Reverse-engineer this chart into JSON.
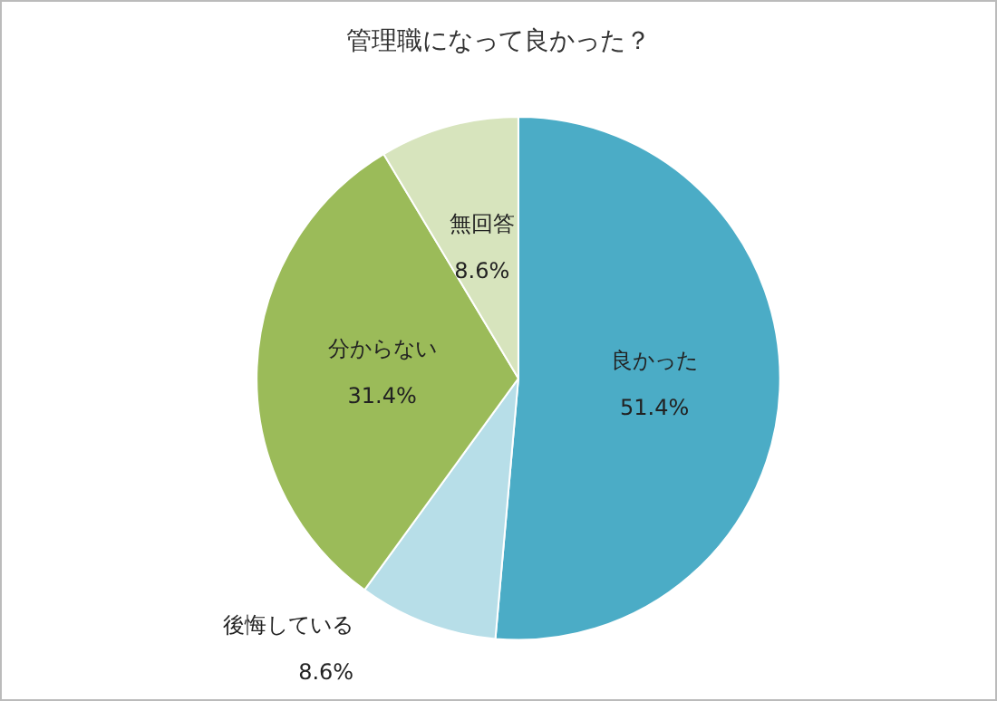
{
  "chart_data": {
    "type": "pie",
    "title": "管理職になって良かった？",
    "categories": [
      "良かった",
      "後悔している",
      "分からない",
      "無回答"
    ],
    "values": [
      51.4,
      8.6,
      31.4,
      8.6
    ],
    "value_labels": [
      "51.4%",
      "8.6%",
      "31.4%",
      "8.6%"
    ],
    "colors": [
      "#4bacc6",
      "#b7dee8",
      "#9bbb59",
      "#d7e4bd"
    ],
    "legend": false
  }
}
